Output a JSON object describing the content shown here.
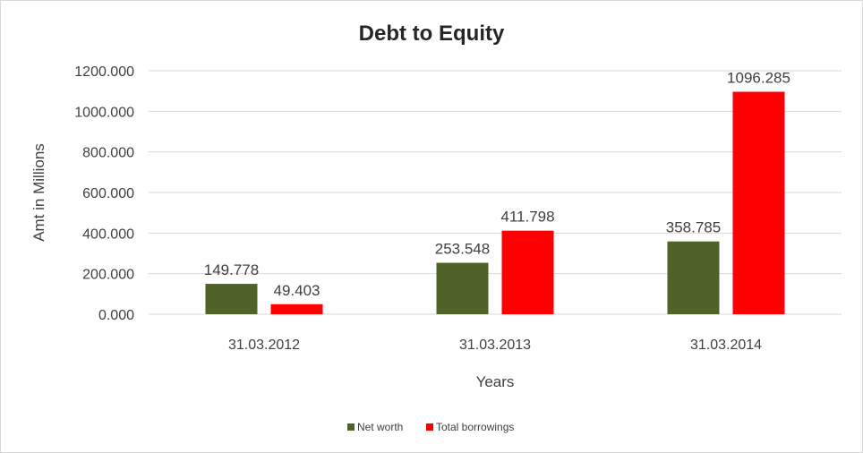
{
  "chart_data": {
    "type": "bar",
    "title": "Debt to Equity",
    "xlabel": "Years",
    "ylabel": "Amt in Millions",
    "categories": [
      "31.03.2012",
      "31.03.2013",
      "31.03.2014"
    ],
    "series": [
      {
        "name": "Net worth",
        "color": "#4f6228",
        "values": [
          149.778,
          253.548,
          358.785
        ],
        "labels": [
          "149.778",
          "253.548",
          "358.785"
        ]
      },
      {
        "name": "Total borrowings",
        "color": "#ff0000",
        "values": [
          49.403,
          411.798,
          1096.285
        ],
        "labels": [
          "49.403",
          "411.798",
          "1096.285"
        ]
      }
    ],
    "ylim": [
      0,
      1200
    ],
    "yticks": [
      "0.000",
      "200.000",
      "400.000",
      "600.000",
      "800.000",
      "1000.000",
      "1200.000"
    ],
    "grid": true,
    "legend_position": "bottom"
  }
}
